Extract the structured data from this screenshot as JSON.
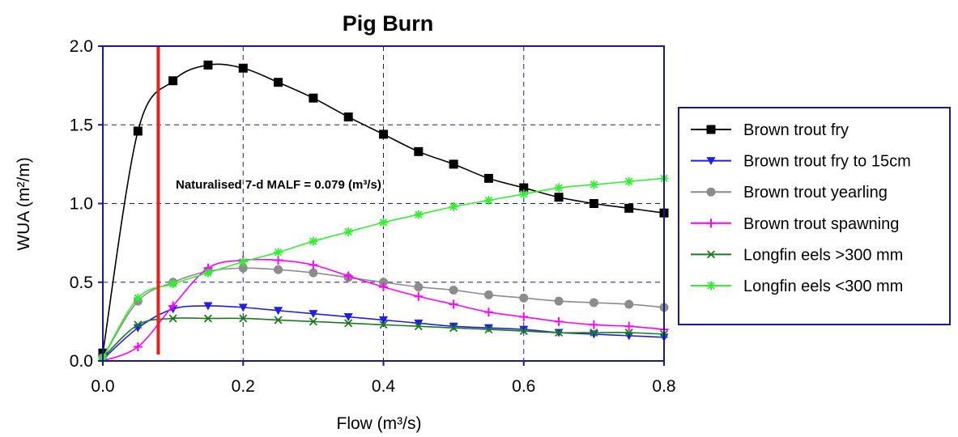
{
  "chart_data": {
    "type": "line",
    "title": "Pig Burn",
    "xlabel": "Flow (m³/s)",
    "ylabel": "WUA (m²/m)",
    "xlim": [
      0,
      0.8
    ],
    "ylim": [
      0,
      2.0
    ],
    "x_ticks": [
      "0.0",
      "0.2",
      "0.4",
      "0.6",
      "0.8"
    ],
    "y_ticks": [
      "0.0",
      "0.5",
      "1.0",
      "1.5",
      "2.0"
    ],
    "grid": true,
    "legend_position": "right",
    "x": [
      0,
      0.05,
      0.1,
      0.15,
      0.2,
      0.25,
      0.3,
      0.35,
      0.4,
      0.45,
      0.5,
      0.55,
      0.6,
      0.65,
      0.7,
      0.75,
      0.8
    ],
    "series": [
      {
        "name": "Brown trout fry",
        "color": "#000000",
        "marker": "square",
        "values": [
          0.05,
          1.46,
          1.78,
          1.88,
          1.86,
          1.77,
          1.67,
          1.55,
          1.44,
          1.33,
          1.25,
          1.16,
          1.1,
          1.04,
          1.0,
          0.97,
          0.94
        ]
      },
      {
        "name": "Brown trout fry to 15cm",
        "color": "#1f1fe6",
        "marker": "triangle-down",
        "values": [
          0.01,
          0.21,
          0.33,
          0.35,
          0.34,
          0.32,
          0.3,
          0.28,
          0.26,
          0.24,
          0.22,
          0.21,
          0.2,
          0.18,
          0.17,
          0.16,
          0.15
        ]
      },
      {
        "name": "Brown trout yearling",
        "color": "#8c8c8c",
        "marker": "circle",
        "values": [
          0.02,
          0.38,
          0.5,
          0.57,
          0.59,
          0.58,
          0.56,
          0.53,
          0.5,
          0.47,
          0.45,
          0.42,
          0.4,
          0.38,
          0.37,
          0.36,
          0.34
        ]
      },
      {
        "name": "Brown trout spawning",
        "color": "#ff00ff",
        "marker": "plus",
        "values": [
          0.0,
          0.09,
          0.35,
          0.59,
          0.64,
          0.64,
          0.61,
          0.54,
          0.47,
          0.41,
          0.36,
          0.31,
          0.28,
          0.25,
          0.23,
          0.22,
          0.2
        ]
      },
      {
        "name": "Longfin eels >300 mm",
        "color": "#1e7a1e",
        "marker": "x",
        "values": [
          0.02,
          0.23,
          0.27,
          0.27,
          0.27,
          0.26,
          0.25,
          0.24,
          0.23,
          0.22,
          0.21,
          0.2,
          0.19,
          0.18,
          0.18,
          0.18,
          0.17
        ]
      },
      {
        "name": "Longfin eels <300 mm",
        "color": "#33ee33",
        "marker": "star",
        "values": [
          0.02,
          0.4,
          0.49,
          0.56,
          0.63,
          0.69,
          0.76,
          0.82,
          0.88,
          0.93,
          0.98,
          1.02,
          1.06,
          1.1,
          1.12,
          1.14,
          1.16
        ]
      }
    ],
    "reference_line": {
      "x": 0.079,
      "color": "#ee1c1c"
    },
    "annotation": "Naturalised 7-d MALF = 0.079 (m³/s)"
  }
}
